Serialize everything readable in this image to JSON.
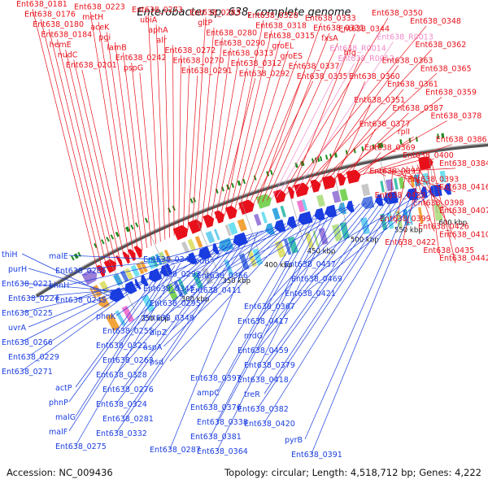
{
  "title": "Enterobacter sp. 638, complete genome",
  "accession": "Accession: NC_009436",
  "summary": "Topology: circular; Length: 4,518,712 bp; Genes: 4,222",
  "ticks": [
    "250 kbp",
    "300 kbp",
    "350 kbp",
    "400 kbp",
    "450 kbp",
    "500 kbp",
    "550 kbp",
    "600 kbp"
  ],
  "forward_labels": [
    "Ent638_0181",
    "Ent638_0176",
    "Ent638_0180",
    "Ent638_0184",
    "hemE",
    "nudC",
    "Ent638_0201",
    "Ent638_0223",
    "metH",
    "aceK",
    "pgi",
    "lamB",
    "Ent638_0242",
    "pspG",
    "Ent638_0273",
    "ubiA",
    "aphA",
    "alr",
    "Ent638_0272",
    "Ent638_0270",
    "Ent638_0291",
    "Ent638_0283",
    "gltP",
    "Ent638_0280",
    "Ent638_0290",
    "Ent638_0313",
    "Ent638_0312",
    "Ent638_0292",
    "Ent638_0320",
    "Ent638_0318",
    "Ent638_0315",
    "groEL",
    "groES",
    "Ent638_0337",
    "Ent638_0335",
    "Ent638_0333",
    "Ent638_0331",
    "fxsA",
    "Ent638_R0014",
    "Ent638_R0012",
    "Ent638_0350",
    "Ent638_0348",
    "Ent638_0344",
    "Ent638_R0013",
    "Ent638_0362",
    "hfq",
    "Ent638_0363",
    "Ent638_0365",
    "Ent638_0360",
    "Ent638_0361",
    "Ent638_0359",
    "Ent638_0351",
    "Ent638_0387",
    "Ent638_0378",
    "Ent638_0377",
    "rplI",
    "Ent638_0386",
    "Ent638_0369",
    "Ent638_0400",
    "Ent638_0384",
    "Ent638_0395",
    "Ent638_0393",
    "Ent638_0416",
    "Ent638_0423",
    "Ent638_0398",
    "Ent638_0407",
    "Ent638_0399",
    "Ent638_0426",
    "Ent638_0410",
    "Ent638_0422",
    "Ent638_0435",
    "Ent638_0442"
  ],
  "reverse_labels": [
    "thiH",
    "purH",
    "Ent638_0221",
    "Ent638_0224",
    "Ent638_0225",
    "uvrA",
    "Ent638_0266",
    "Ent638_0229",
    "Ent638_0271",
    "actP",
    "phnP",
    "malG",
    "malF",
    "Ent638_0275",
    "malE",
    "Ent638_0286",
    "phnH",
    "Ent638_0245",
    "phnK",
    "Ent638_0255",
    "Ent638_0322",
    "Ent638_0263",
    "Ent638_0328",
    "Ent638_0276",
    "Ent638_0324",
    "Ent638_0281",
    "Ent638_0332",
    "Ent638_0287",
    "Ent638_0342",
    "Ent638_0293",
    "Ent638_0345",
    "Ent638_0295",
    "Ent638_0349",
    "dipZ",
    "aspA",
    "psd",
    "Ent638_0397",
    "ampC",
    "Ent638_0376",
    "Ent638_0338",
    "Ent638_0381",
    "Ent638_0364",
    "cpdB",
    "Ent638_0366",
    "Ent638_0411",
    "Ent638_0367",
    "Ent638_0417",
    "nrdG",
    "Ent638_0459",
    "Ent638_0379",
    "Ent638_0418",
    "treR",
    "Ent638_0382",
    "Ent638_0420",
    "pyrB",
    "Ent638_0391",
    "Ent638_0437",
    "Ent638_0469",
    "Ent638_0421"
  ],
  "colors": {
    "forward": "#e8101a",
    "reverse": "#1a3de0",
    "rna": "#f08ac8",
    "backbone": "#888888",
    "tick": "#111111",
    "gc": "#1f8a1f"
  },
  "icons": {
    "feature": "arrow-shape"
  }
}
